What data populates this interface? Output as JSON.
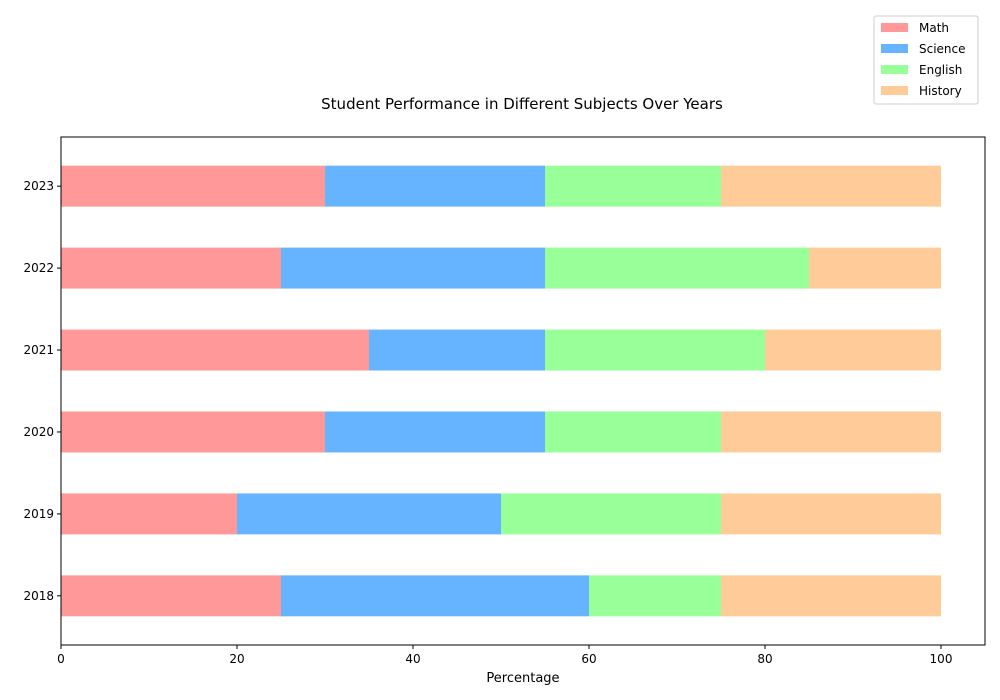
{
  "chart_data": {
    "type": "bar",
    "orientation": "horizontal",
    "stacked": true,
    "title": "Student Performance in Different Subjects Over Years",
    "xlabel": "Percentage",
    "ylabel": "",
    "xlim": [
      0,
      105
    ],
    "x_ticks": [
      0,
      20,
      40,
      60,
      80,
      100
    ],
    "categories": [
      "2018",
      "2019",
      "2020",
      "2021",
      "2022",
      "2023"
    ],
    "series": [
      {
        "name": "Math",
        "color": "#ff9999",
        "values": [
          25,
          20,
          30,
          35,
          25,
          30
        ]
      },
      {
        "name": "Science",
        "color": "#66b3ff",
        "values": [
          35,
          30,
          25,
          20,
          30,
          25
        ]
      },
      {
        "name": "English",
        "color": "#99ff99",
        "values": [
          15,
          25,
          20,
          25,
          30,
          20
        ]
      },
      {
        "name": "History",
        "color": "#ffcc99",
        "values": [
          25,
          25,
          25,
          20,
          15,
          25
        ]
      }
    ],
    "grid": false,
    "legend_position": "top-right"
  }
}
